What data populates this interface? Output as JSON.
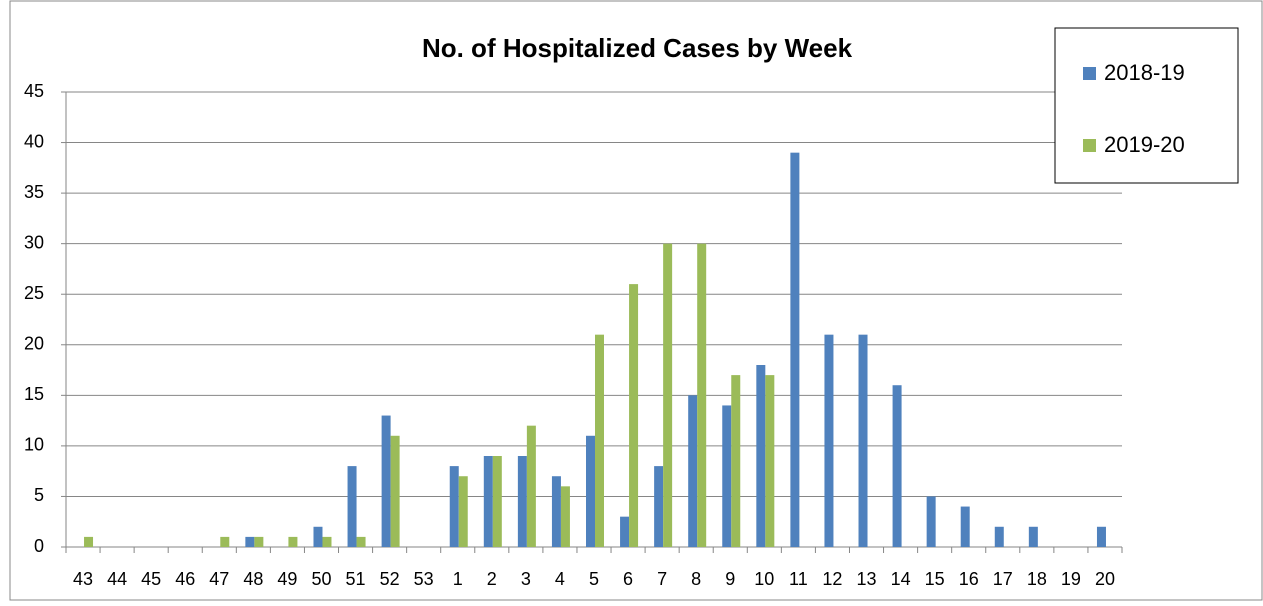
{
  "chart_data": {
    "type": "bar",
    "title": "No. of  Hospitalized Cases by Week",
    "categories": [
      "43",
      "44",
      "45",
      "46",
      "47",
      "48",
      "49",
      "50",
      "51",
      "52",
      "53",
      "1",
      "2",
      "3",
      "4",
      "5",
      "6",
      "7",
      "8",
      "9",
      "10",
      "11",
      "12",
      "13",
      "14",
      "15",
      "16",
      "17",
      "18",
      "19",
      "20"
    ],
    "series": [
      {
        "name": "2018-19",
        "color": "#4f81bd",
        "values": [
          0,
          0,
          0,
          0,
          0,
          1,
          0,
          2,
          8,
          13,
          0,
          8,
          9,
          9,
          7,
          11,
          3,
          8,
          15,
          14,
          18,
          39,
          21,
          21,
          16,
          5,
          4,
          2,
          2,
          0,
          2
        ]
      },
      {
        "name": "2019-20",
        "color": "#9bbb59",
        "values": [
          1,
          0,
          0,
          0,
          1,
          1,
          1,
          1,
          1,
          11,
          0,
          7,
          9,
          12,
          6,
          21,
          26,
          30,
          30,
          17,
          17,
          null,
          null,
          null,
          null,
          null,
          null,
          null,
          null,
          null,
          null
        ]
      }
    ],
    "ylim": [
      0,
      45
    ],
    "yticks": [
      0,
      5,
      10,
      15,
      20,
      25,
      30,
      35,
      40,
      45
    ],
    "grid": true,
    "legend": "top-right"
  }
}
